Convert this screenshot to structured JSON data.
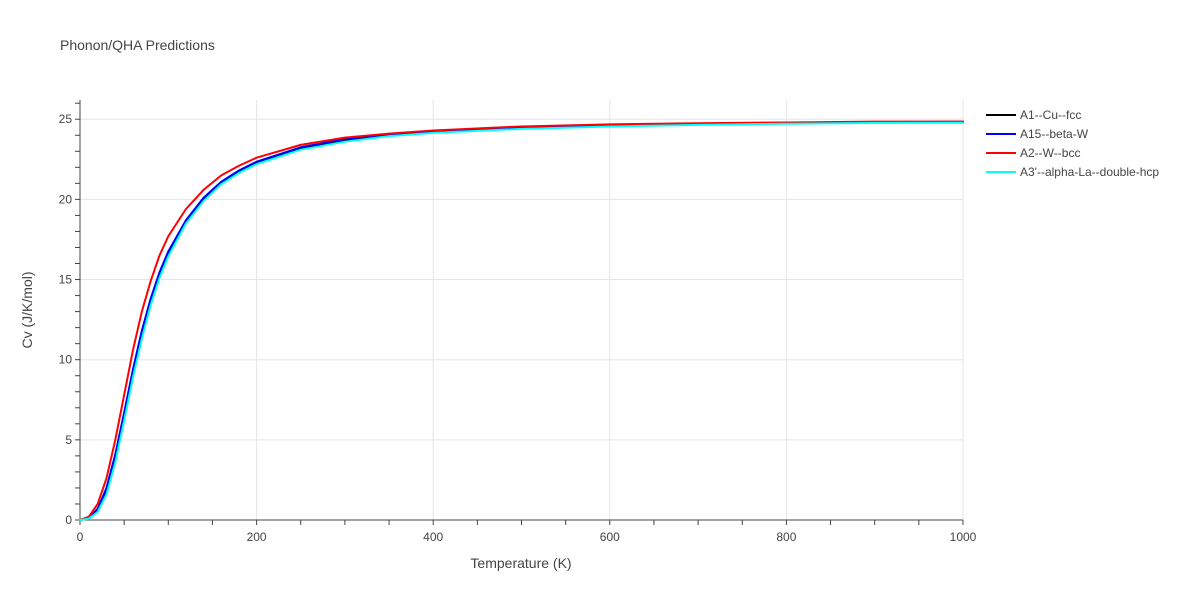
{
  "chart_data": {
    "type": "line",
    "title": "Phonon/QHA Predictions",
    "xlabel": "Temperature (K)",
    "ylabel": "Cv (J/K/mol)",
    "xlim": [
      0,
      1000
    ],
    "ylim": [
      0,
      26.2
    ],
    "x_ticks": [
      "0",
      "200",
      "400",
      "600",
      "800",
      "1000"
    ],
    "y_ticks": [
      "0",
      "5",
      "10",
      "15",
      "20",
      "25"
    ],
    "grid": true,
    "legend_position": "right",
    "x": [
      0,
      10,
      20,
      30,
      40,
      50,
      60,
      70,
      80,
      90,
      100,
      120,
      140,
      160,
      180,
      200,
      250,
      300,
      350,
      400,
      500,
      600,
      700,
      800,
      900,
      1000
    ],
    "series": [
      {
        "name": "A1--Cu--fcc",
        "color": "#000000",
        "values": [
          0,
          0.1,
          0.6,
          1.8,
          3.9,
          6.5,
          9.2,
          11.6,
          13.6,
          15.3,
          16.6,
          18.6,
          20.0,
          21.0,
          21.7,
          22.3,
          23.2,
          23.7,
          24.0,
          24.2,
          24.45,
          24.6,
          24.7,
          24.75,
          24.8,
          24.8
        ]
      },
      {
        "name": "A15--beta-W",
        "color": "#0000ff",
        "values": [
          0,
          0.12,
          0.7,
          2.0,
          4.1,
          6.7,
          9.4,
          11.8,
          13.8,
          15.45,
          16.75,
          18.7,
          20.1,
          21.1,
          21.8,
          22.35,
          23.25,
          23.75,
          24.05,
          24.25,
          24.5,
          24.65,
          24.72,
          24.78,
          24.82,
          24.85
        ]
      },
      {
        "name": "A2--W--bcc",
        "color": "#ff0000",
        "values": [
          0,
          0.2,
          1.0,
          2.6,
          5.0,
          7.8,
          10.6,
          13.0,
          14.9,
          16.5,
          17.7,
          19.4,
          20.6,
          21.5,
          22.1,
          22.6,
          23.4,
          23.85,
          24.1,
          24.3,
          24.55,
          24.68,
          24.75,
          24.8,
          24.85,
          24.85
        ]
      },
      {
        "name": "A3'--alpha-La--double-hcp",
        "color": "#00ffff",
        "values": [
          0,
          0.08,
          0.5,
          1.6,
          3.6,
          6.2,
          8.9,
          11.3,
          13.4,
          15.1,
          16.45,
          18.5,
          19.9,
          20.95,
          21.65,
          22.2,
          23.1,
          23.6,
          23.95,
          24.15,
          24.4,
          24.55,
          24.65,
          24.72,
          24.77,
          24.78
        ]
      }
    ]
  }
}
